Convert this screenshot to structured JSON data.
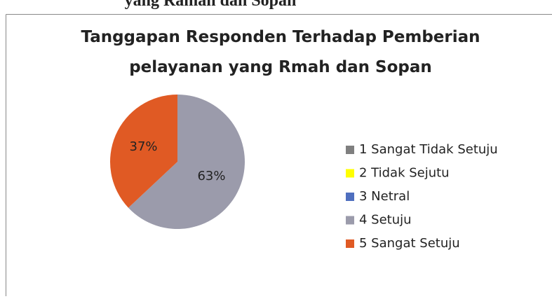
{
  "page_heading": "yang Ramah dan Sopan",
  "chart_data": {
    "type": "pie",
    "title": [
      "Tanggapan Responden Terhadap Pemberian",
      "pelayanan yang Rmah dan Sopan"
    ],
    "categories": [
      "1 Sangat Tidak Setuju",
      "2 Tidak Sejutu",
      "3 Netral",
      "4 Setuju",
      "5 Sangat Setuju"
    ],
    "values": [
      0,
      0,
      0,
      63,
      37
    ],
    "value_labels": [
      null,
      null,
      null,
      "63%",
      "37%"
    ],
    "colors": [
      "#7f7f7f",
      "#ffff00",
      "#4f6fbf",
      "#9b9bab",
      "#e05a24"
    ],
    "legend": "right"
  }
}
